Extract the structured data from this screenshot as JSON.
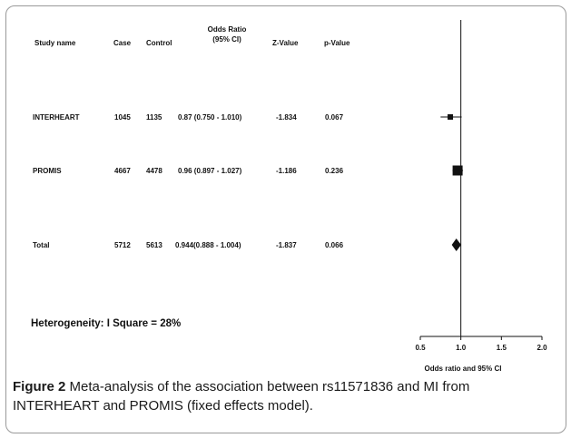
{
  "chart_data": {
    "type": "forest",
    "columns": [
      "Study name",
      "Case",
      "Control",
      "Odds Ratio\n(95% CI)",
      "Z-Value",
      "p-Value"
    ],
    "rows": [
      {
        "study": "INTERHEART",
        "case": "1045",
        "control": "1135",
        "or_text": "0.87 (0.750 - 1.010)",
        "z": "-1.834",
        "p": "0.067",
        "or": 0.87,
        "lo": 0.75,
        "hi": 1.01,
        "marker": "square",
        "weight": "small"
      },
      {
        "study": "PROMIS",
        "case": "4667",
        "control": "4478",
        "or_text": "0.96 (0.897 - 1.027)",
        "z": "-1.186",
        "p": "0.236",
        "or": 0.96,
        "lo": 0.897,
        "hi": 1.027,
        "marker": "square",
        "weight": "large"
      },
      {
        "study": "Total",
        "case": "5712",
        "control": "5613",
        "or_text": "0.944(0.888 - 1.004)",
        "z": "-1.837",
        "p": "0.066",
        "or": 0.944,
        "lo": 0.888,
        "hi": 1.004,
        "marker": "diamond",
        "weight": "pooled"
      }
    ],
    "heterogeneity": "Heterogeneity: I Square = 28%",
    "x_ticks": [
      "0.5",
      "1.0",
      "1.5",
      "2.0"
    ],
    "xlim": [
      0.5,
      2.0
    ],
    "reference_line": 1.0,
    "xlabel": "Odds ratio and 95% CI"
  },
  "caption": {
    "label": "Figure 2",
    "text": "Meta-analysis of the association between rs11571836 and MI from INTERHEART and PROMIS (fixed effects model)."
  }
}
